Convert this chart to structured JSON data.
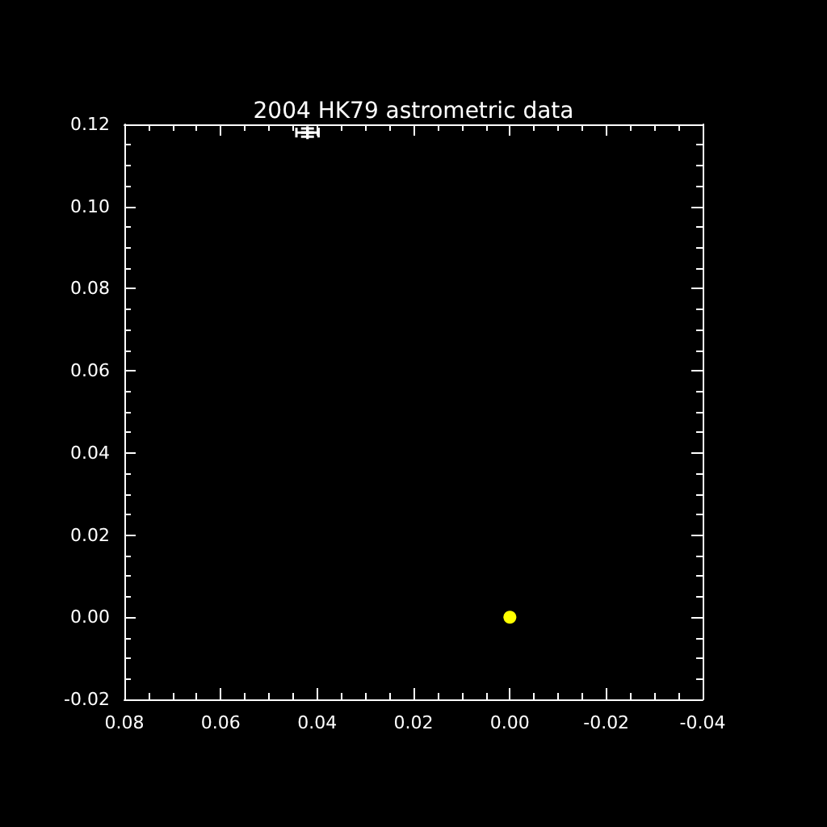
{
  "chart_data": {
    "type": "scatter",
    "title": "2004 HK79 astrometric data",
    "series": [
      {
        "color": "#ffff00",
        "marker": "circle",
        "x": [
          0.0
        ],
        "values": [
          0.0
        ]
      },
      {
        "color": "#ffffff",
        "marker": "cross",
        "x": [
          0.042
        ],
        "values": [
          0.118
        ],
        "errors": [
          0.001
        ],
        "xerrors": [
          0.0023
        ]
      }
    ],
    "xlim": [
      0.08,
      -0.04
    ],
    "xticks": [
      {
        "value": 0.08,
        "label": "0.08"
      },
      {
        "value": 0.075,
        "label": null
      },
      {
        "value": 0.07,
        "label": null
      },
      {
        "value": 0.065,
        "label": null
      },
      {
        "value": 0.06,
        "label": "0.06"
      },
      {
        "value": 0.055,
        "label": null
      },
      {
        "value": 0.05,
        "label": null
      },
      {
        "value": 0.045,
        "label": null
      },
      {
        "value": 0.04,
        "label": "0.04"
      },
      {
        "value": 0.035,
        "label": null
      },
      {
        "value": 0.03,
        "label": null
      },
      {
        "value": 0.025,
        "label": null
      },
      {
        "value": 0.02,
        "label": "0.02"
      },
      {
        "value": 0.015,
        "label": null
      },
      {
        "value": 0.01,
        "label": null
      },
      {
        "value": 0.005,
        "label": null
      },
      {
        "value": 0,
        "label": "0.00"
      },
      {
        "value": -0.005,
        "label": null
      },
      {
        "value": -0.01,
        "label": null
      },
      {
        "value": -0.015,
        "label": null
      },
      {
        "value": -0.02,
        "label": "-0.02"
      },
      {
        "value": -0.025,
        "label": null
      },
      {
        "value": -0.03,
        "label": null
      },
      {
        "value": -0.035,
        "label": null
      },
      {
        "value": -0.04,
        "label": "-0.04"
      }
    ],
    "ylim": [
      -0.02,
      0.12
    ],
    "yticks": [
      {
        "value": -0.02,
        "label": "-0.02"
      },
      {
        "value": -0.015,
        "label": null
      },
      {
        "value": -0.01,
        "label": null
      },
      {
        "value": -0.005,
        "label": null
      },
      {
        "value": 0,
        "label": "0.00"
      },
      {
        "value": 0.005,
        "label": null
      },
      {
        "value": 0.01,
        "label": null
      },
      {
        "value": 0.015,
        "label": null
      },
      {
        "value": 0.02,
        "label": "0.02"
      },
      {
        "value": 0.025,
        "label": null
      },
      {
        "value": 0.03,
        "label": null
      },
      {
        "value": 0.035,
        "label": null
      },
      {
        "value": 0.04,
        "label": "0.04"
      },
      {
        "value": 0.045,
        "label": null
      },
      {
        "value": 0.05,
        "label": null
      },
      {
        "value": 0.055,
        "label": null
      },
      {
        "value": 0.06,
        "label": "0.06"
      },
      {
        "value": 0.065,
        "label": null
      },
      {
        "value": 0.07,
        "label": null
      },
      {
        "value": 0.075,
        "label": null
      },
      {
        "value": 0.08,
        "label": "0.08"
      },
      {
        "value": 0.085,
        "label": null
      },
      {
        "value": 0.09,
        "label": null
      },
      {
        "value": 0.095,
        "label": null
      },
      {
        "value": 0.1,
        "label": "0.10"
      },
      {
        "value": 0.105,
        "label": null
      },
      {
        "value": 0.11,
        "label": null
      },
      {
        "value": 0.115,
        "label": null
      },
      {
        "value": 0.12,
        "label": "0.12"
      }
    ]
  }
}
